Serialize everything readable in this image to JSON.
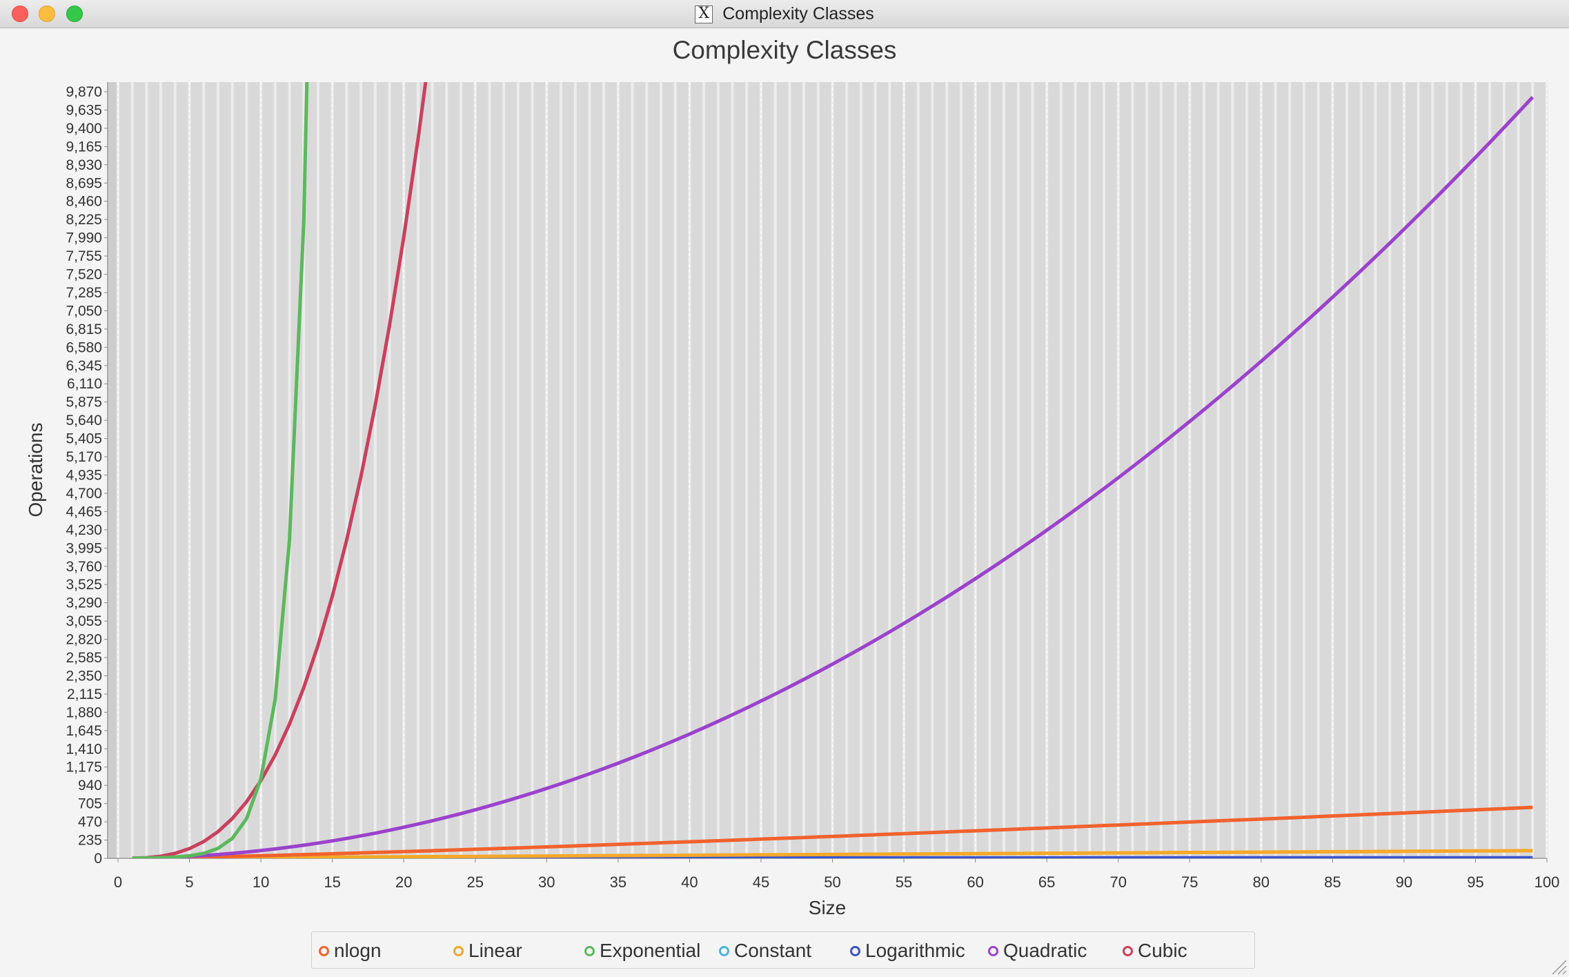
{
  "window": {
    "title": "Complexity Classes"
  },
  "chart_data": {
    "type": "line",
    "title": "Complexity Classes",
    "xlabel": "Size",
    "ylabel": "Operations",
    "xlim": [
      0,
      100
    ],
    "ylim": [
      0,
      10000
    ],
    "x_ticks": [
      0,
      5,
      10,
      15,
      20,
      25,
      30,
      35,
      40,
      45,
      50,
      55,
      60,
      65,
      70,
      75,
      80,
      85,
      90,
      95,
      100
    ],
    "y_ticks": [
      0,
      235,
      470,
      705,
      940,
      1175,
      1410,
      1645,
      1880,
      2115,
      2350,
      2585,
      2820,
      3055,
      3290,
      3525,
      3760,
      3995,
      4230,
      4465,
      4700,
      4935,
      5170,
      5405,
      5640,
      5875,
      6110,
      6345,
      6580,
      6815,
      7050,
      7285,
      7520,
      7755,
      7990,
      8225,
      8460,
      8695,
      8930,
      9165,
      9400,
      9635,
      9870
    ],
    "y_tick_labels": [
      "0",
      "235",
      "470",
      "705",
      "940",
      "1,175",
      "1,410",
      "1,645",
      "1,880",
      "2,115",
      "2,350",
      "2,585",
      "2,820",
      "3,055",
      "3,290",
      "3,525",
      "3,760",
      "3,995",
      "4,230",
      "4,465",
      "4,700",
      "4,935",
      "5,170",
      "5,405",
      "5,640",
      "5,875",
      "6,110",
      "6,345",
      "6,580",
      "6,815",
      "7,050",
      "7,285",
      "7,520",
      "7,755",
      "7,990",
      "8,225",
      "8,460",
      "8,695",
      "8,930",
      "9,165",
      "9,400",
      "9,635",
      "9,870"
    ],
    "legend_position": "bottom",
    "grid": true,
    "series": [
      {
        "name": "nlogn",
        "color": "#f0622d",
        "x_range": [
          1,
          99
        ],
        "formula": "n*log2(n)",
        "values_sample": [
          [
            1,
            0
          ],
          [
            10,
            33
          ],
          [
            20,
            86
          ],
          [
            40,
            213
          ],
          [
            60,
            354
          ],
          [
            80,
            506
          ],
          [
            99,
            656
          ]
        ]
      },
      {
        "name": "Linear",
        "color": "#f5a82a",
        "x_range": [
          1,
          99
        ],
        "formula": "n",
        "values_sample": [
          [
            1,
            1
          ],
          [
            50,
            50
          ],
          [
            99,
            99
          ]
        ]
      },
      {
        "name": "Exponential",
        "color": "#5cb85c",
        "x_range": [
          1,
          14
        ],
        "formula": "2^n",
        "values_sample": [
          [
            1,
            2
          ],
          [
            5,
            32
          ],
          [
            8,
            256
          ],
          [
            9,
            512
          ],
          [
            10,
            1024
          ],
          [
            11,
            2048
          ],
          [
            12,
            4096
          ],
          [
            13,
            8192
          ],
          [
            14,
            16384
          ]
        ]
      },
      {
        "name": "Constant",
        "color": "#4fb3d9",
        "x_range": [
          1,
          99
        ],
        "formula": "1",
        "values_sample": [
          [
            1,
            1
          ],
          [
            99,
            1
          ]
        ]
      },
      {
        "name": "Logarithmic",
        "color": "#3b55c9",
        "x_range": [
          1,
          99
        ],
        "formula": "log2(n)",
        "values_sample": [
          [
            1,
            0
          ],
          [
            10,
            3.3
          ],
          [
            99,
            6.6
          ]
        ]
      },
      {
        "name": "Quadratic",
        "color": "#9b42cc",
        "x_range": [
          1,
          99
        ],
        "formula": "n^2",
        "values_sample": [
          [
            1,
            1
          ],
          [
            10,
            100
          ],
          [
            25,
            625
          ],
          [
            50,
            2500
          ],
          [
            75,
            5625
          ],
          [
            99,
            9801
          ]
        ]
      },
      {
        "name": "Cubic",
        "color": "#c9405e",
        "x_range": [
          1,
          22
        ],
        "formula": "n^3",
        "values_sample": [
          [
            1,
            1
          ],
          [
            5,
            125
          ],
          [
            10,
            1000
          ],
          [
            15,
            3375
          ],
          [
            20,
            8000
          ],
          [
            21,
            9261
          ],
          [
            22,
            10648
          ]
        ]
      }
    ]
  }
}
